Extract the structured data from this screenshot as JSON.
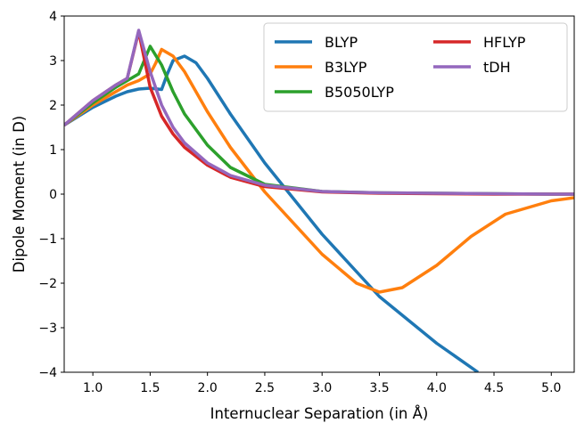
{
  "chart_data": {
    "type": "line",
    "xlabel": "Internuclear Separation (in Å)",
    "ylabel": "Dipole Moment (in D)",
    "xlim": [
      0.75,
      5.2
    ],
    "ylim": [
      -4,
      4
    ],
    "xticks": [
      1.0,
      1.5,
      2.0,
      2.5,
      3.0,
      3.5,
      4.0,
      4.5,
      5.0
    ],
    "yticks": [
      -4,
      -3,
      -2,
      -1,
      0,
      1,
      2,
      3,
      4
    ],
    "xtick_labels": [
      "1.0",
      "1.5",
      "2.0",
      "2.5",
      "3.0",
      "3.5",
      "4.0",
      "4.5",
      "5.0"
    ],
    "ytick_labels": [
      "−4",
      "−3",
      "−2",
      "−1",
      "0",
      "1",
      "2",
      "3",
      "4"
    ],
    "grid": false,
    "legend_position": "top-right",
    "series": [
      {
        "name": "BLYP",
        "color": "#1f77b4",
        "x": [
          0.75,
          1.0,
          1.2,
          1.3,
          1.4,
          1.5,
          1.6,
          1.65,
          1.7,
          1.8,
          1.9,
          2.0,
          2.2,
          2.5,
          3.0,
          3.5,
          4.0,
          4.36
        ],
        "y": [
          1.55,
          1.95,
          2.2,
          2.3,
          2.36,
          2.38,
          2.35,
          2.7,
          3.0,
          3.1,
          2.95,
          2.6,
          1.8,
          0.7,
          -0.9,
          -2.3,
          -3.35,
          -4.0
        ]
      },
      {
        "name": "B3LYP",
        "color": "#ff7f0e",
        "x": [
          0.75,
          1.0,
          1.2,
          1.3,
          1.4,
          1.5,
          1.55,
          1.6,
          1.7,
          1.8,
          2.0,
          2.2,
          2.5,
          3.0,
          3.3,
          3.5,
          3.7,
          4.0,
          4.3,
          4.6,
          5.0,
          5.2
        ],
        "y": [
          1.55,
          2.0,
          2.3,
          2.45,
          2.55,
          2.7,
          2.95,
          3.25,
          3.1,
          2.75,
          1.85,
          1.05,
          0.05,
          -1.35,
          -2.0,
          -2.2,
          -2.1,
          -1.6,
          -0.95,
          -0.45,
          -0.15,
          -0.08
        ]
      },
      {
        "name": "B5050LYP",
        "color": "#2ca02c",
        "x": [
          0.75,
          1.0,
          1.2,
          1.3,
          1.4,
          1.5,
          1.6,
          1.7,
          1.8,
          2.0,
          2.2,
          2.5,
          3.0,
          3.5,
          4.0,
          4.5,
          5.0,
          5.2
        ],
        "y": [
          1.55,
          2.05,
          2.4,
          2.55,
          2.7,
          3.32,
          2.9,
          2.3,
          1.8,
          1.1,
          0.6,
          0.22,
          0.06,
          0.03,
          0.02,
          0.01,
          0.0,
          0.0
        ]
      },
      {
        "name": "HFLYP",
        "color": "#d62728",
        "x": [
          0.75,
          1.0,
          1.2,
          1.3,
          1.4,
          1.5,
          1.6,
          1.7,
          1.8,
          2.0,
          2.2,
          2.5,
          3.0,
          3.5,
          4.0,
          4.5,
          5.0,
          5.2
        ],
        "y": [
          1.55,
          2.1,
          2.45,
          2.6,
          3.65,
          2.4,
          1.75,
          1.35,
          1.05,
          0.65,
          0.38,
          0.17,
          0.05,
          0.02,
          0.01,
          0.0,
          0.0,
          0.0
        ]
      },
      {
        "name": "tDH",
        "color": "#9467bd",
        "x": [
          0.75,
          1.0,
          1.2,
          1.3,
          1.4,
          1.5,
          1.6,
          1.7,
          1.8,
          2.0,
          2.2,
          2.5,
          3.0,
          3.5,
          4.0,
          4.5,
          5.0,
          5.2
        ],
        "y": [
          1.55,
          2.1,
          2.45,
          2.6,
          3.68,
          2.75,
          2.0,
          1.5,
          1.15,
          0.7,
          0.42,
          0.2,
          0.06,
          0.03,
          0.02,
          0.01,
          0.0,
          0.0
        ]
      }
    ]
  }
}
